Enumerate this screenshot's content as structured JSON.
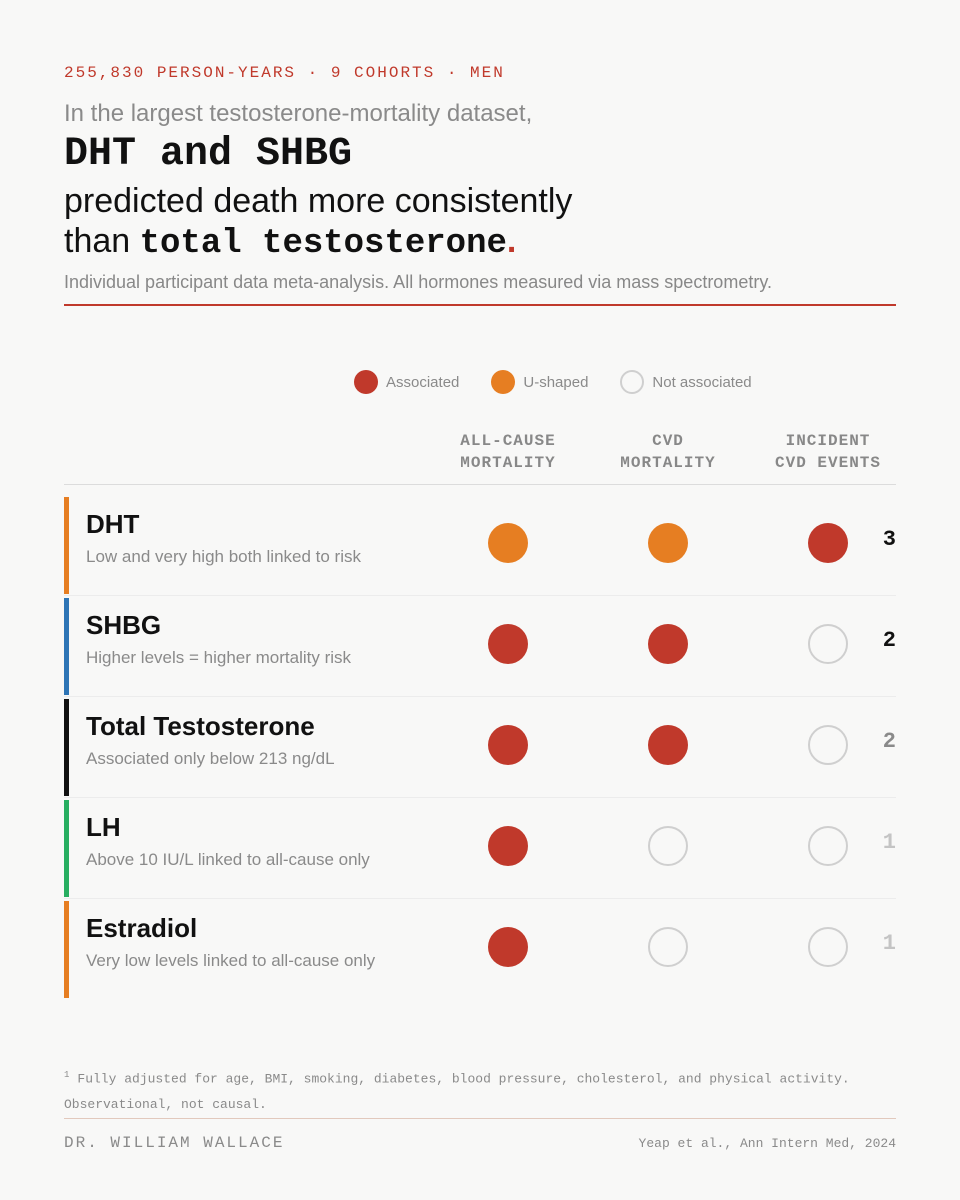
{
  "header": {
    "kicker": "255,830 PERSON-YEARS · 9 COHORTS · MEN",
    "intro": "In the largest testosterone-mortality dataset,",
    "headline": "DHT and SHBG",
    "line2": "predicted death more consistently",
    "line3_prefix": "than ",
    "line3_emph": "total testosterone",
    "line3_period": ".",
    "subhead": "Individual participant data meta-analysis. All hormones measured via mass spectrometry."
  },
  "colors": {
    "associated": "#c0392b",
    "u_shaped": "#e67e22",
    "not_associated_stroke": "#cfcfcf"
  },
  "chart_data": {
    "type": "table",
    "legend": [
      {
        "key": "associated",
        "label": "Associated"
      },
      {
        "key": "u_shaped",
        "label": "U-shaped"
      },
      {
        "key": "not_associated",
        "label": "Not associated"
      }
    ],
    "columns": [
      {
        "line1": "ALL-CAUSE",
        "line2": "MORTALITY"
      },
      {
        "line1": "CVD",
        "line2": "MORTALITY"
      },
      {
        "line1": "INCIDENT",
        "line2": "CVD EVENTS"
      }
    ],
    "rows": [
      {
        "name": "DHT",
        "desc": "Low and very high both linked to risk",
        "bar_color": "#e67e22",
        "cells": [
          "u_shaped",
          "u_shaped",
          "associated"
        ],
        "count": "3"
      },
      {
        "name": "SHBG",
        "desc": "Higher levels = higher mortality risk",
        "bar_color": "#2e75b6",
        "cells": [
          "associated",
          "associated",
          "not_associated"
        ],
        "count": "2"
      },
      {
        "name": "Total Testosterone",
        "desc": "Associated only below 213 ng/dL",
        "bar_color": "#111111",
        "cells": [
          "associated",
          "associated",
          "not_associated"
        ],
        "count": "2"
      },
      {
        "name": "LH",
        "desc": "Above 10 IU/L linked to all-cause only",
        "bar_color": "#27ae60",
        "cells": [
          "associated",
          "not_associated",
          "not_associated"
        ],
        "count": "1"
      },
      {
        "name": "Estradiol",
        "desc": "Very low levels linked to all-cause only",
        "bar_color": "#e67e22",
        "cells": [
          "associated",
          "not_associated",
          "not_associated"
        ],
        "count": "1"
      }
    ]
  },
  "footer": {
    "footnote_mark": "1",
    "footnote": "Fully adjusted for age, BMI, smoking, diabetes, blood pressure, cholesterol, and physical activity. Observational, not causal.",
    "author": "DR. WILLIAM WALLACE",
    "source": "Yeap et al., Ann Intern Med, 2024"
  }
}
